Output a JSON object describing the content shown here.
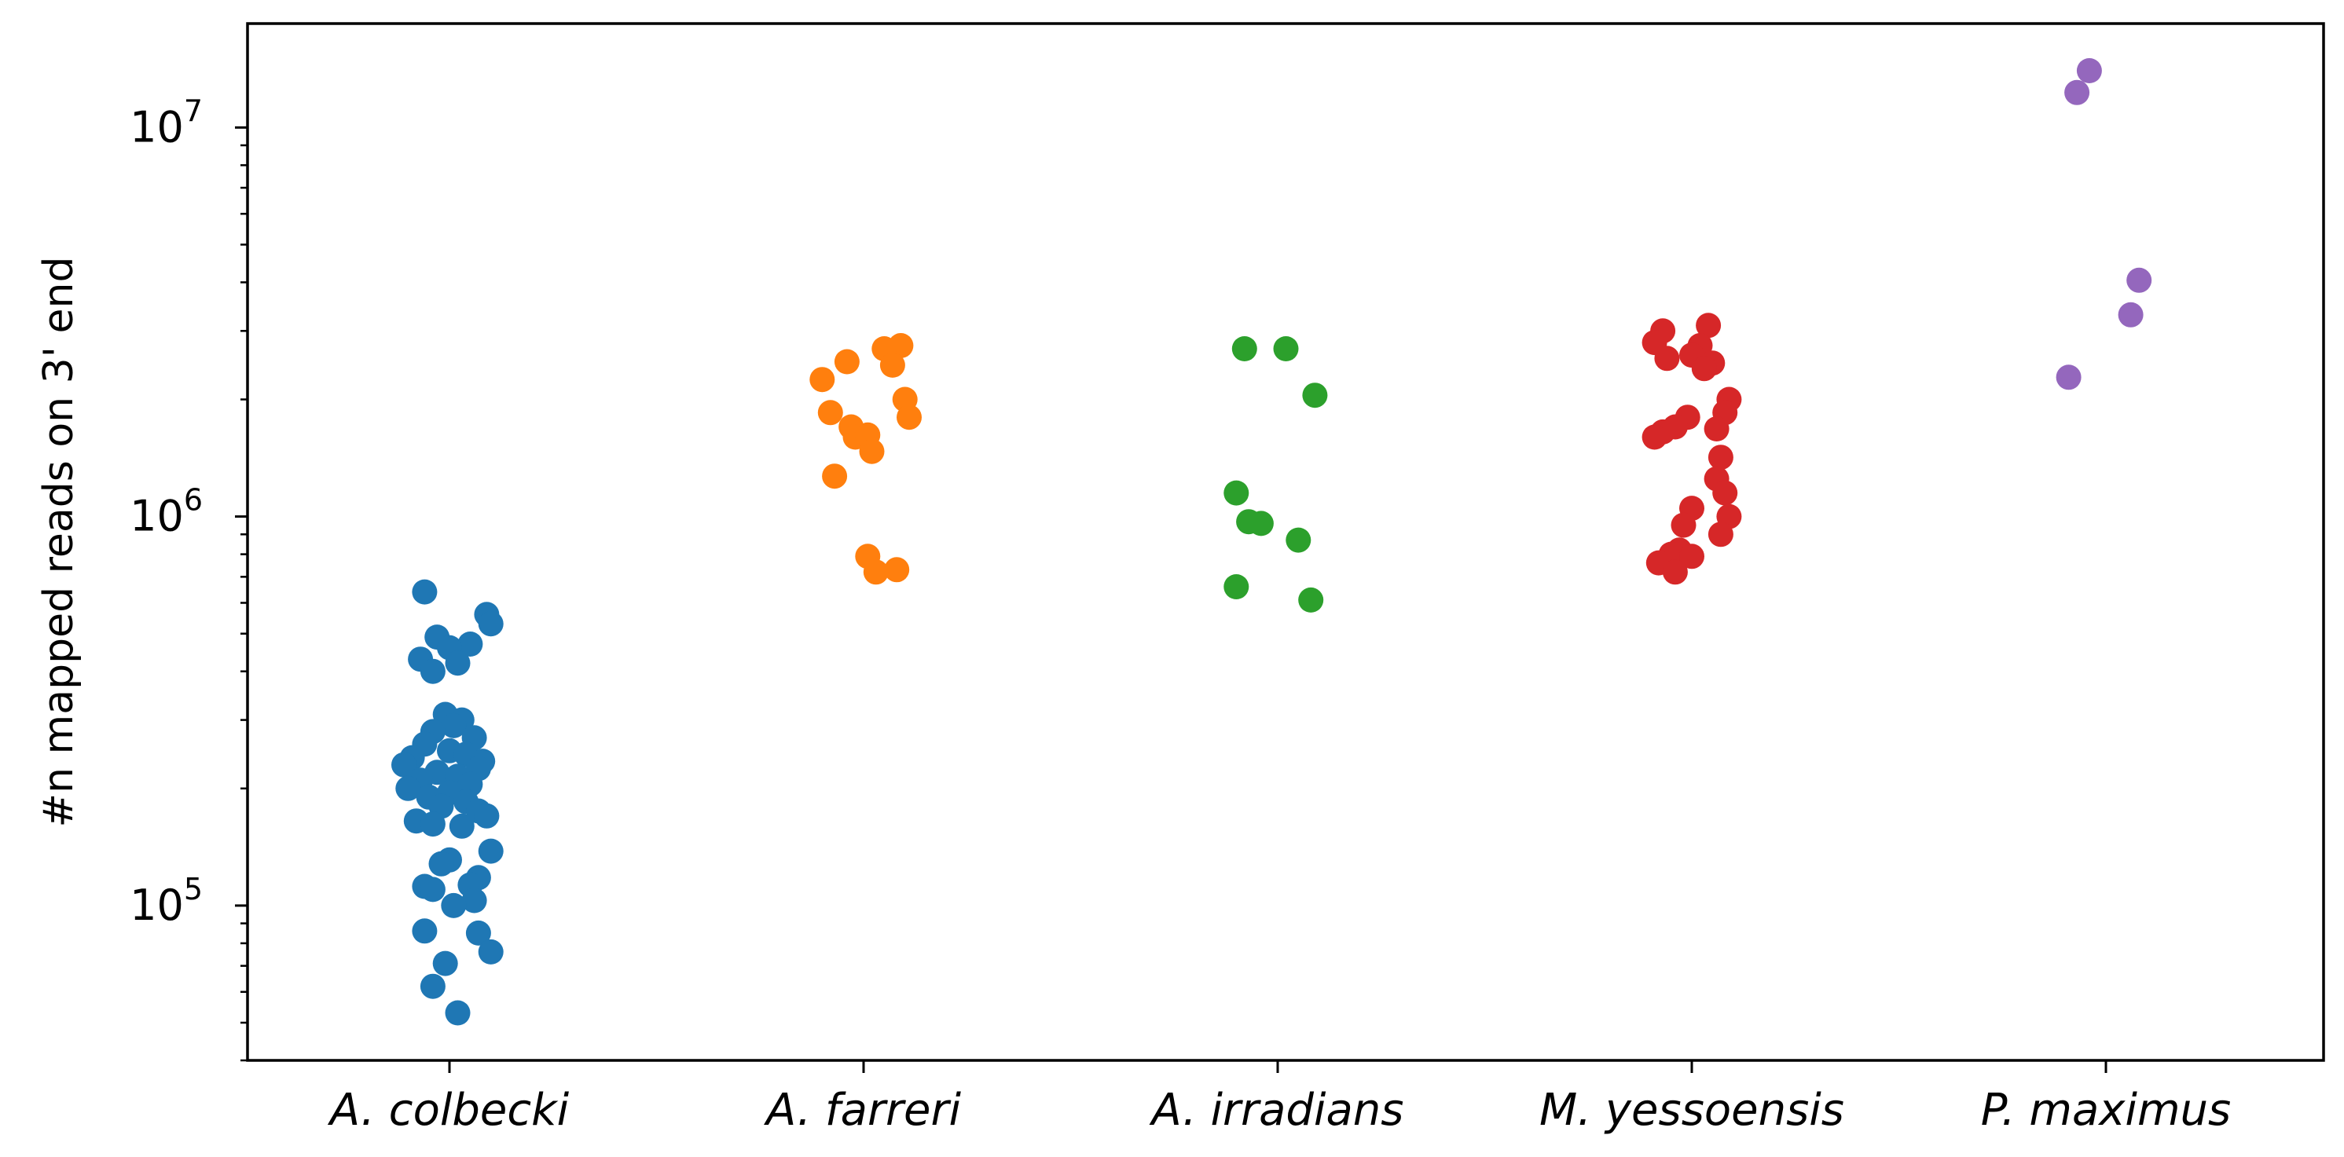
{
  "chart_data": {
    "type": "scatter",
    "subtype": "strip",
    "title": "",
    "xlabel": "",
    "ylabel": "#n mapped reads on 3' end",
    "yscale": "log",
    "ylim": [
      40000,
      18500000
    ],
    "categories": [
      "A. colbecki",
      "A. farreri",
      "A. irradians",
      "M. yessoensis",
      "P. maximus"
    ],
    "y_ticks": [
      {
        "value": 100000,
        "base": "10",
        "exp": "5"
      },
      {
        "value": 1000000,
        "base": "10",
        "exp": "6"
      },
      {
        "value": 10000000,
        "base": "10",
        "exp": "7"
      }
    ],
    "grid": false,
    "legend": "none",
    "series": [
      {
        "category": "A. colbecki",
        "color": "#1f77b4",
        "points": [
          {
            "jitter": -0.06,
            "y": 640000
          },
          {
            "jitter": 0.09,
            "y": 560000
          },
          {
            "jitter": 0.1,
            "y": 530000
          },
          {
            "jitter": -0.03,
            "y": 490000
          },
          {
            "jitter": 0.05,
            "y": 470000
          },
          {
            "jitter": 0.0,
            "y": 460000
          },
          {
            "jitter": -0.07,
            "y": 430000
          },
          {
            "jitter": 0.02,
            "y": 420000
          },
          {
            "jitter": -0.04,
            "y": 400000
          },
          {
            "jitter": -0.01,
            "y": 310000
          },
          {
            "jitter": 0.03,
            "y": 300000
          },
          {
            "jitter": 0.01,
            "y": 290000
          },
          {
            "jitter": -0.04,
            "y": 280000
          },
          {
            "jitter": 0.06,
            "y": 270000
          },
          {
            "jitter": -0.06,
            "y": 260000
          },
          {
            "jitter": 0.0,
            "y": 250000
          },
          {
            "jitter": 0.04,
            "y": 245000
          },
          {
            "jitter": -0.09,
            "y": 240000
          },
          {
            "jitter": 0.08,
            "y": 235000
          },
          {
            "jitter": -0.11,
            "y": 230000
          },
          {
            "jitter": 0.07,
            "y": 225000
          },
          {
            "jitter": -0.03,
            "y": 220000
          },
          {
            "jitter": 0.02,
            "y": 215000
          },
          {
            "jitter": -0.07,
            "y": 210000
          },
          {
            "jitter": 0.05,
            "y": 205000
          },
          {
            "jitter": -0.1,
            "y": 200000
          },
          {
            "jitter": 0.0,
            "y": 195000
          },
          {
            "jitter": -0.05,
            "y": 190000
          },
          {
            "jitter": 0.04,
            "y": 185000
          },
          {
            "jitter": -0.02,
            "y": 180000
          },
          {
            "jitter": 0.07,
            "y": 175000
          },
          {
            "jitter": 0.09,
            "y": 170000
          },
          {
            "jitter": -0.08,
            "y": 165000
          },
          {
            "jitter": -0.04,
            "y": 162000
          },
          {
            "jitter": 0.03,
            "y": 160000
          },
          {
            "jitter": 0.1,
            "y": 138000
          },
          {
            "jitter": 0.0,
            "y": 131000
          },
          {
            "jitter": -0.02,
            "y": 128000
          },
          {
            "jitter": 0.07,
            "y": 118000
          },
          {
            "jitter": 0.05,
            "y": 113000
          },
          {
            "jitter": -0.06,
            "y": 112000
          },
          {
            "jitter": -0.04,
            "y": 110000
          },
          {
            "jitter": 0.06,
            "y": 103000
          },
          {
            "jitter": 0.01,
            "y": 100000
          },
          {
            "jitter": 0.07,
            "y": 85000
          },
          {
            "jitter": -0.06,
            "y": 86000
          },
          {
            "jitter": 0.1,
            "y": 76000
          },
          {
            "jitter": -0.01,
            "y": 71000
          },
          {
            "jitter": -0.04,
            "y": 62000
          },
          {
            "jitter": 0.02,
            "y": 53000
          }
        ]
      },
      {
        "category": "A. farreri",
        "color": "#ff7f0e",
        "points": [
          {
            "jitter": 0.09,
            "y": 2750000
          },
          {
            "jitter": 0.05,
            "y": 2700000
          },
          {
            "jitter": 0.07,
            "y": 2450000
          },
          {
            "jitter": -0.04,
            "y": 2500000
          },
          {
            "jitter": -0.1,
            "y": 2250000
          },
          {
            "jitter": 0.1,
            "y": 2000000
          },
          {
            "jitter": 0.11,
            "y": 1800000
          },
          {
            "jitter": -0.08,
            "y": 1850000
          },
          {
            "jitter": -0.03,
            "y": 1700000
          },
          {
            "jitter": -0.02,
            "y": 1600000
          },
          {
            "jitter": 0.01,
            "y": 1620000
          },
          {
            "jitter": 0.02,
            "y": 1470000
          },
          {
            "jitter": -0.07,
            "y": 1270000
          },
          {
            "jitter": 0.01,
            "y": 790000
          },
          {
            "jitter": 0.08,
            "y": 730000
          },
          {
            "jitter": 0.03,
            "y": 720000
          }
        ]
      },
      {
        "category": "A. irradians",
        "color": "#2ca02c",
        "points": [
          {
            "jitter": -0.08,
            "y": 2700000
          },
          {
            "jitter": 0.02,
            "y": 2700000
          },
          {
            "jitter": 0.09,
            "y": 2050000
          },
          {
            "jitter": -0.1,
            "y": 1150000
          },
          {
            "jitter": -0.07,
            "y": 970000
          },
          {
            "jitter": -0.04,
            "y": 960000
          },
          {
            "jitter": 0.05,
            "y": 870000
          },
          {
            "jitter": -0.1,
            "y": 660000
          },
          {
            "jitter": 0.08,
            "y": 610000
          }
        ]
      },
      {
        "category": "M. yessoensis",
        "color": "#d62728",
        "points": [
          {
            "jitter": -0.07,
            "y": 3000000
          },
          {
            "jitter": 0.04,
            "y": 3100000
          },
          {
            "jitter": -0.09,
            "y": 2800000
          },
          {
            "jitter": 0.02,
            "y": 2750000
          },
          {
            "jitter": 0.0,
            "y": 2600000
          },
          {
            "jitter": -0.06,
            "y": 2550000
          },
          {
            "jitter": 0.05,
            "y": 2480000
          },
          {
            "jitter": 0.03,
            "y": 2400000
          },
          {
            "jitter": 0.09,
            "y": 2000000
          },
          {
            "jitter": 0.08,
            "y": 1850000
          },
          {
            "jitter": -0.01,
            "y": 1800000
          },
          {
            "jitter": -0.04,
            "y": 1700000
          },
          {
            "jitter": 0.06,
            "y": 1680000
          },
          {
            "jitter": -0.07,
            "y": 1650000
          },
          {
            "jitter": -0.09,
            "y": 1600000
          },
          {
            "jitter": 0.07,
            "y": 1420000
          },
          {
            "jitter": 0.06,
            "y": 1250000
          },
          {
            "jitter": 0.08,
            "y": 1150000
          },
          {
            "jitter": 0.0,
            "y": 1050000
          },
          {
            "jitter": 0.09,
            "y": 1000000
          },
          {
            "jitter": -0.02,
            "y": 950000
          },
          {
            "jitter": 0.07,
            "y": 900000
          },
          {
            "jitter": -0.03,
            "y": 820000
          },
          {
            "jitter": -0.05,
            "y": 800000
          },
          {
            "jitter": 0.0,
            "y": 790000
          },
          {
            "jitter": -0.08,
            "y": 760000
          },
          {
            "jitter": -0.04,
            "y": 720000
          }
        ]
      },
      {
        "category": "P. maximus",
        "color": "#9467bd",
        "points": [
          {
            "jitter": -0.04,
            "y": 14000000
          },
          {
            "jitter": -0.07,
            "y": 12300000
          },
          {
            "jitter": 0.08,
            "y": 4050000
          },
          {
            "jitter": 0.06,
            "y": 3300000
          },
          {
            "jitter": -0.09,
            "y": 2280000
          }
        ]
      }
    ]
  }
}
